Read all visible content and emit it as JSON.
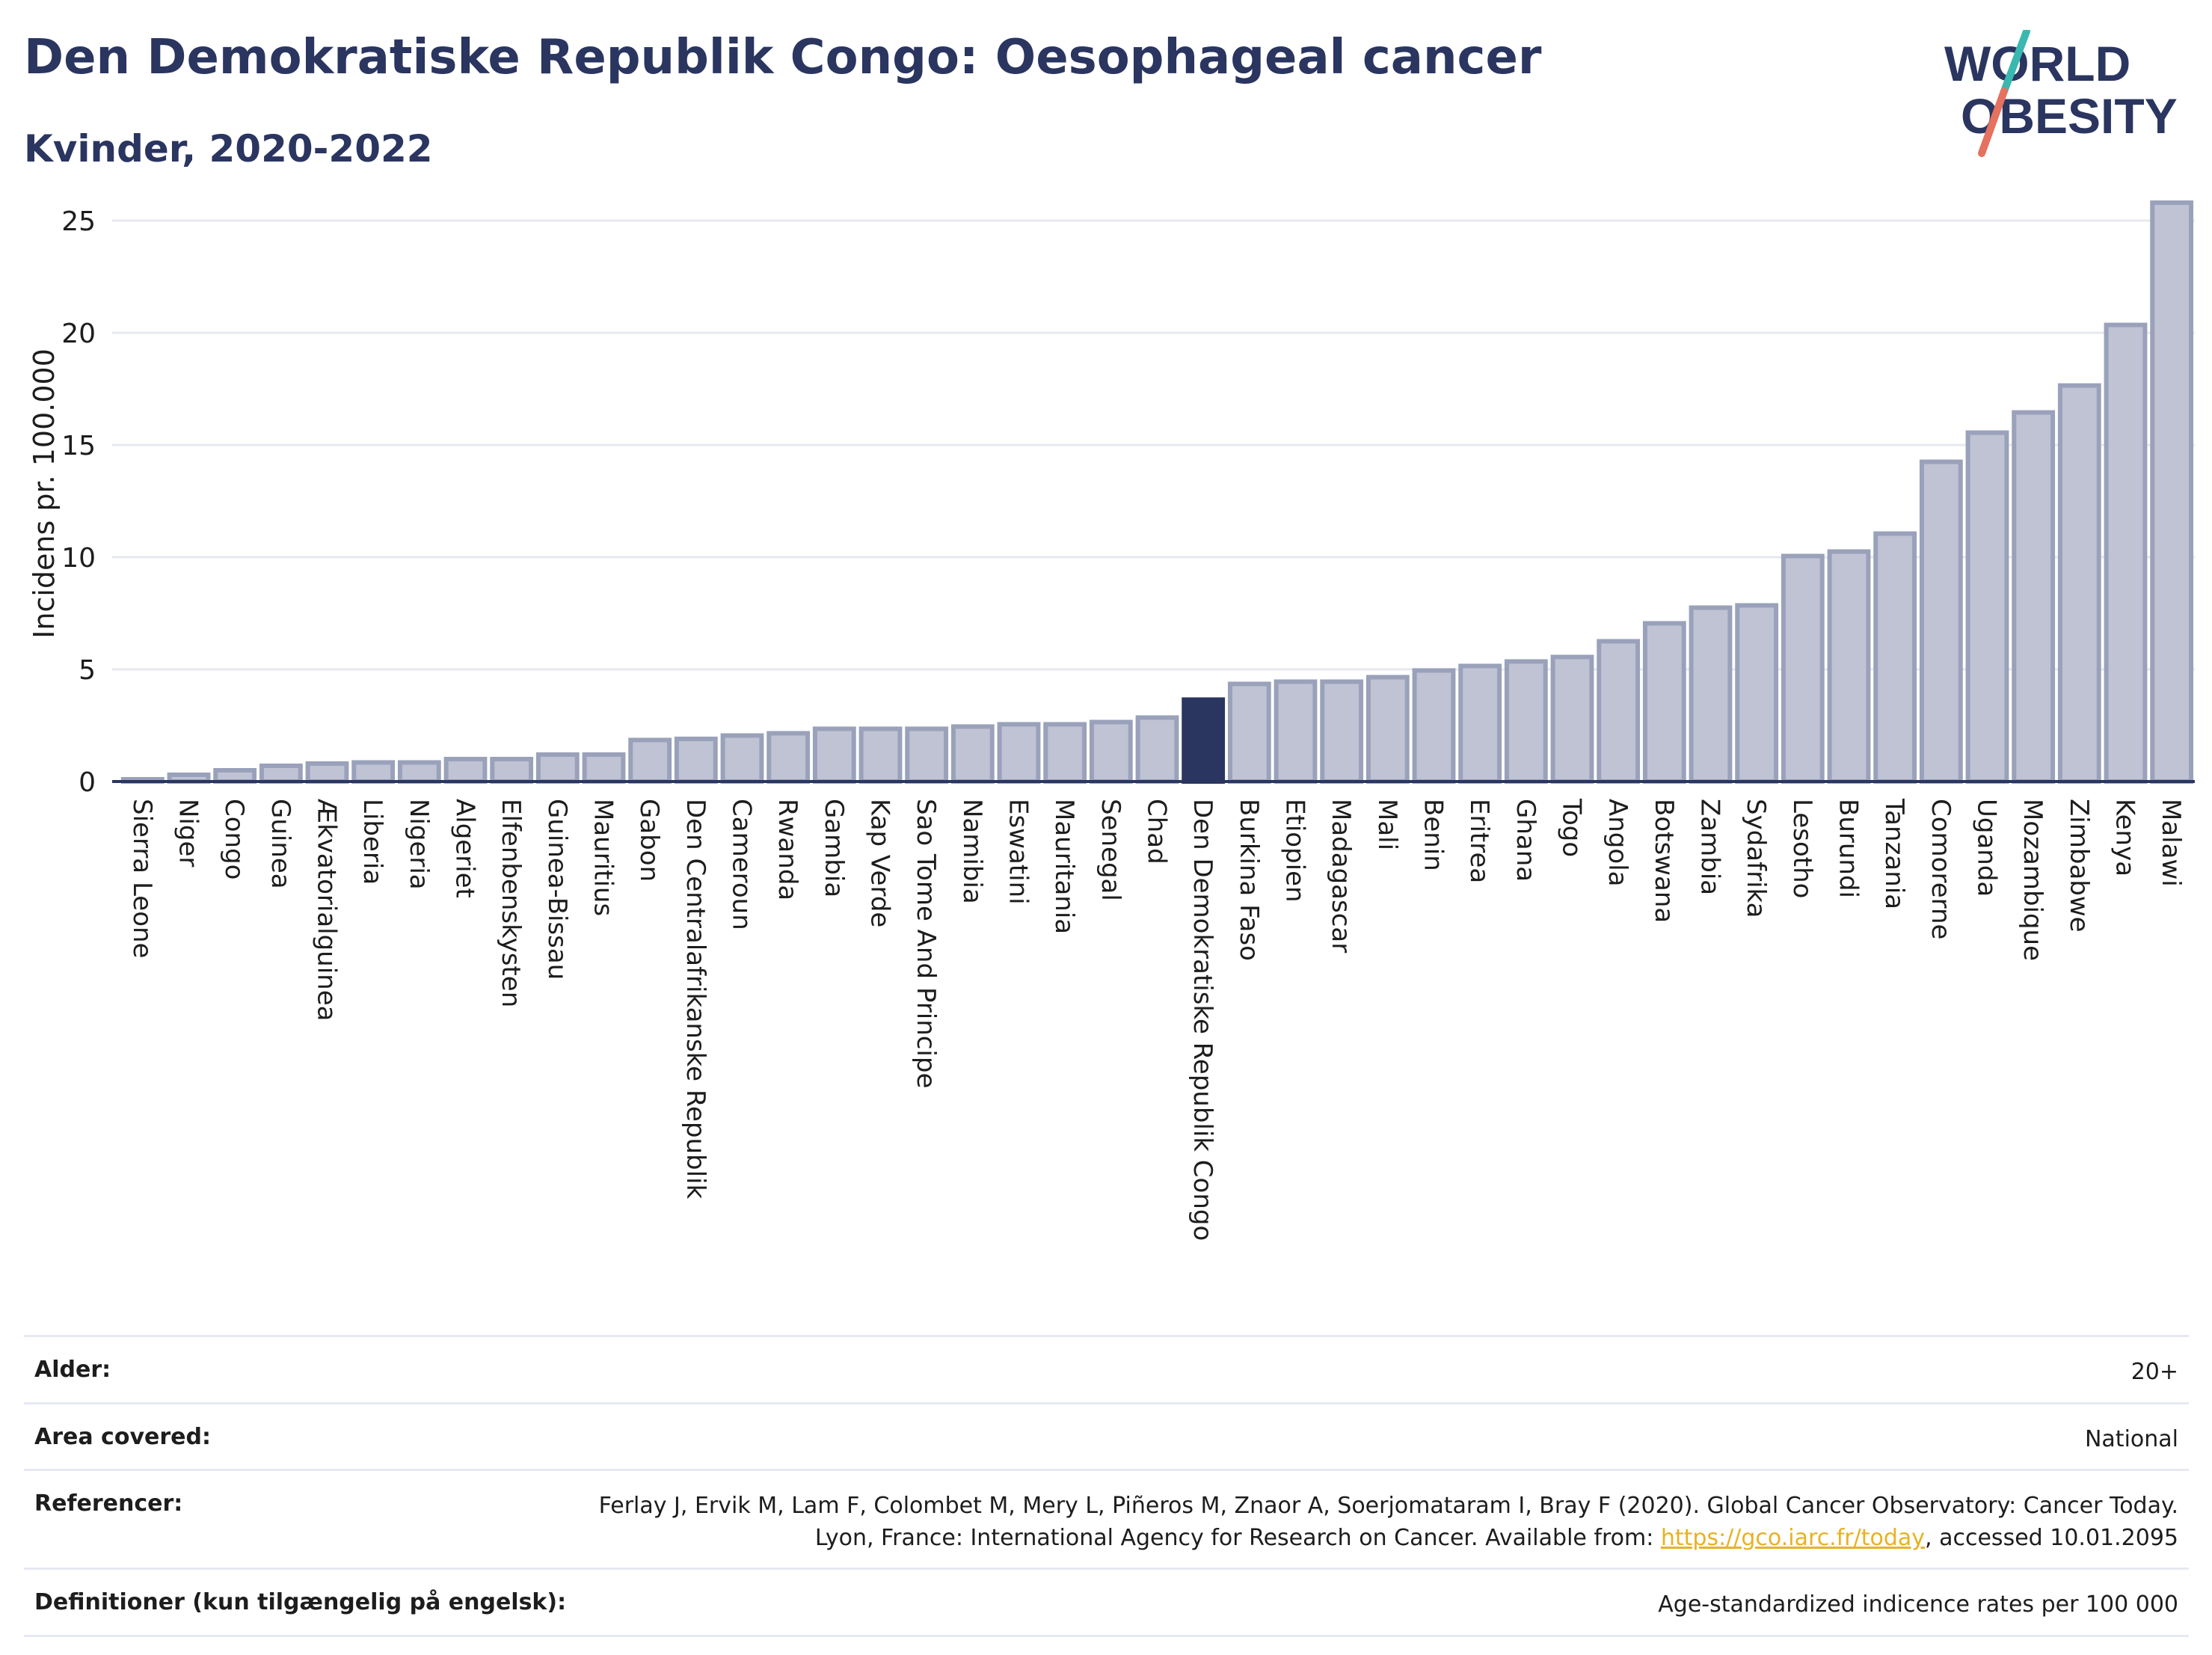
{
  "header": {
    "title": "Den Demokratiske Republik Congo: Oesophageal cancer",
    "subtitle": "Kvinder, 2020-2022"
  },
  "logo": {
    "line1": "WORLD",
    "line2": "OBESITY",
    "icon": "world-obesity-logo"
  },
  "colors": {
    "bar": "#bfc3d3",
    "bar_border": "#9aa1ba",
    "highlight": "#2a3560",
    "axis": "#2a3560",
    "grid": "#e6e8ee",
    "link": "#e8b223"
  },
  "chart_data": {
    "type": "bar",
    "ylabel": "Incidens pr. 100.000",
    "ylim": [
      0,
      27
    ],
    "yticks": [
      0,
      5,
      10,
      15,
      20,
      25
    ],
    "grid": true,
    "highlight": "Den Demokratiske Republik Congo",
    "categories": [
      "Sierra Leone",
      "Niger",
      "Congo",
      "Guinea",
      "Ækvatorialguinea",
      "Liberia",
      "Nigeria",
      "Algeriet",
      "Elfenbenskysten",
      "Guinea-Bissau",
      "Mauritius",
      "Gabon",
      "Den Centralafrikanske Republik",
      "Cameroun",
      "Rwanda",
      "Gambia",
      "Kap Verde",
      "Sao Tome And Principe",
      "Namibia",
      "Eswatini",
      "Mauritania",
      "Senegal",
      "Chad",
      "Den Demokratiske Republik Congo",
      "Burkina Faso",
      "Etiopien",
      "Madagascar",
      "Mali",
      "Benin",
      "Eritrea",
      "Ghana",
      "Togo",
      "Angola",
      "Botswana",
      "Zambia",
      "Sydafrika",
      "Lesotho",
      "Burundi",
      "Tanzania",
      "Comorerne",
      "Uganda",
      "Mozambique",
      "Zimbabwe",
      "Kenya",
      "Malawi"
    ],
    "values": [
      0.1,
      0.3,
      0.5,
      0.7,
      0.8,
      0.85,
      0.85,
      1.0,
      1.0,
      1.2,
      1.2,
      1.85,
      1.9,
      2.05,
      2.15,
      2.35,
      2.35,
      2.35,
      2.45,
      2.55,
      2.55,
      2.65,
      2.85,
      3.65,
      4.35,
      4.45,
      4.45,
      4.65,
      4.95,
      5.15,
      5.35,
      5.55,
      6.25,
      7.05,
      7.75,
      7.85,
      10.05,
      10.25,
      11.05,
      14.25,
      15.55,
      16.45,
      17.65,
      20.35,
      25.8
    ]
  },
  "meta": {
    "rows": [
      {
        "key": "Alder:",
        "value": "20+"
      },
      {
        "key": "Area covered:",
        "value": "National"
      },
      {
        "key": "Referencer:",
        "value_before": "Ferlay J, Ervik M, Lam F, Colombet M, Mery L, Piñeros M, Znaor A, Soerjomataram I, Bray F (2020). Global Cancer Observatory: Cancer Today. Lyon, France: International Agency for Research on Cancer. Available from: ",
        "link": "https://gco.iarc.fr/today",
        "value_after": ", accessed 10.01.2095"
      },
      {
        "key": "Definitioner (kun tilgængelig på engelsk):",
        "value": "Age-standardized indicence rates per 100 000"
      }
    ]
  }
}
